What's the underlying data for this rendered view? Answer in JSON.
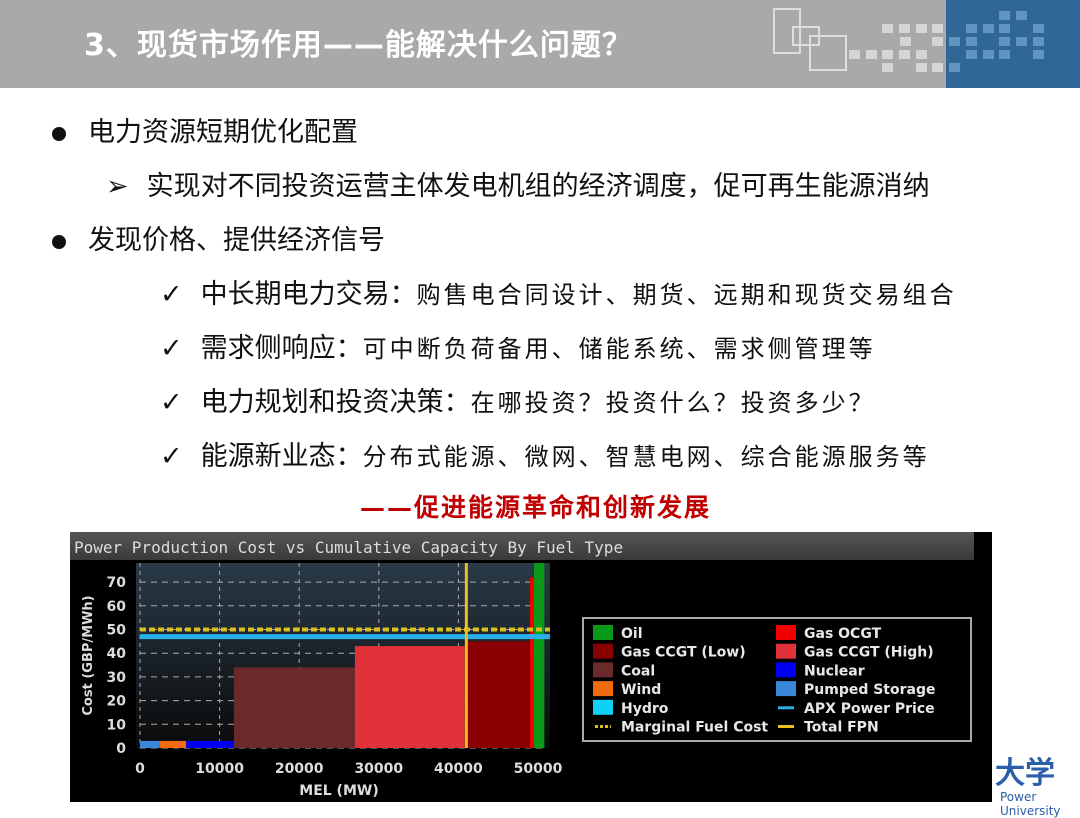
{
  "header": {
    "title": "3、现货市场作用——能解决什么问题？"
  },
  "bullets": [
    {
      "text": "电力资源短期优化配置",
      "subs": [
        {
          "text": "实现对不同投资运营主体发电机组的经济调度，促可再生能源消纳"
        }
      ]
    },
    {
      "text": "发现价格、提供经济信号",
      "checks": [
        {
          "head": "中长期电力交易：",
          "body": "购售电合同设计、期货、远期和现货交易组合"
        },
        {
          "head": "需求侧响应：",
          "body": "可中断负荷备用、储能系统、需求侧管理等"
        },
        {
          "head": "电力规划和投资决策：",
          "body": "在哪投资？投资什么？投资多少？"
        },
        {
          "head": "能源新业态：",
          "body": "分布式能源、微网、智慧电网、综合能源服务等"
        }
      ]
    }
  ],
  "slogan": "——促进能源革命和创新发展",
  "logo": {
    "text": "大学",
    "subtitle": "Power University"
  },
  "chart_data": {
    "type": "bar",
    "title": "Power Production Cost vs Cumulative Capacity By Fuel Type",
    "xlabel": "MEL (MW)",
    "ylabel": "Cost (GBP/MWh)",
    "xlim": [
      0,
      51500
    ],
    "ylim": [
      0,
      78
    ],
    "xticks": [
      0,
      10000,
      20000,
      30000,
      40000,
      50000
    ],
    "yticks": [
      0,
      10,
      20,
      30,
      40,
      50,
      60,
      70
    ],
    "grid": true,
    "legend_position": "right",
    "segments": [
      {
        "fuel": "Pumped Storage",
        "x0": 0,
        "x1": 2500,
        "cost": 3
      },
      {
        "fuel": "Wind",
        "x0": 2500,
        "x1": 5800,
        "cost": 3
      },
      {
        "fuel": "Nuclear",
        "x0": 5800,
        "x1": 11800,
        "cost": 3
      },
      {
        "fuel": "Coal",
        "x0": 11800,
        "x1": 27000,
        "cost": 34
      },
      {
        "fuel": "Gas CCGT (High)",
        "x0": 27000,
        "x1": 40800,
        "cost": 43
      },
      {
        "fuel": "Gas CCGT (Low)",
        "x0": 40800,
        "x1": 49000,
        "cost": 45
      },
      {
        "fuel": "Gas OCGT",
        "x0": 49000,
        "x1": 49500,
        "cost": 72
      },
      {
        "fuel": "Oil",
        "x0": 49500,
        "x1": 50800,
        "cost": 78
      }
    ],
    "lines": {
      "Marginal Fuel Cost": 50,
      "APX Power Price": 47,
      "Total FPN": 41000
    },
    "legend": [
      {
        "name": "Oil",
        "color": "#0a9a1a",
        "kind": "box"
      },
      {
        "name": "Gas OCGT",
        "color": "#f00000",
        "kind": "box"
      },
      {
        "name": "Gas CCGT (Low)",
        "color": "#8a0000",
        "kind": "box"
      },
      {
        "name": "Gas CCGT (High)",
        "color": "#e03238",
        "kind": "box"
      },
      {
        "name": "Coal",
        "color": "#6a2a2c",
        "kind": "box"
      },
      {
        "name": "Nuclear",
        "color": "#0000ee",
        "kind": "box"
      },
      {
        "name": "Wind",
        "color": "#f06a10",
        "kind": "box"
      },
      {
        "name": "Pumped Storage",
        "color": "#3a86d8",
        "kind": "box"
      },
      {
        "name": "Hydro",
        "color": "#10d0f8",
        "kind": "box"
      },
      {
        "name": "APX Power Price",
        "color": "#2ab0e8",
        "kind": "line"
      },
      {
        "name": "Marginal Fuel Cost",
        "color": "#d8c020",
        "kind": "dash"
      },
      {
        "name": "Total FPN",
        "color": "#e8c020",
        "kind": "line"
      }
    ]
  }
}
